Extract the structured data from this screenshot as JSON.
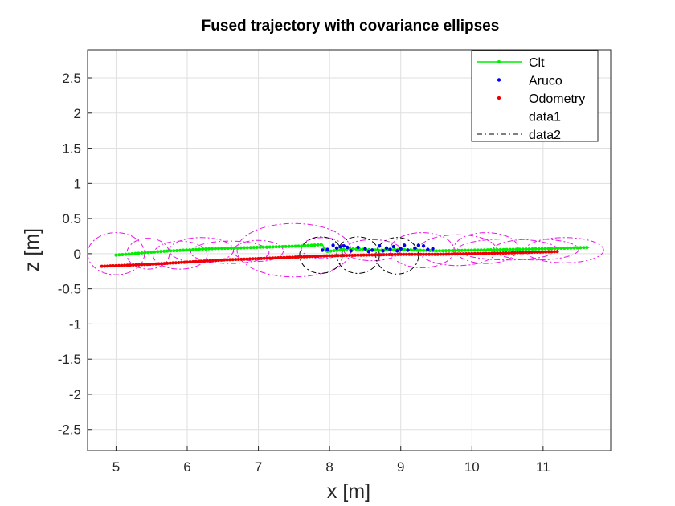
{
  "chart_data": {
    "type": "scatter",
    "title": "Fused trajectory with covariance ellipses",
    "xlabel": "x [m]",
    "ylabel": "z [m]",
    "xlim": [
      4.6,
      11.95
    ],
    "ylim": [
      -2.8,
      2.9
    ],
    "xticks": [
      5,
      6,
      7,
      8,
      9,
      10,
      11
    ],
    "yticks": [
      2.5,
      2,
      1.5,
      1,
      0.5,
      0,
      -0.5,
      -1,
      -1.5,
      -2,
      -2.5
    ],
    "xtick_labels": [
      "5",
      "6",
      "7",
      "8",
      "9",
      "10",
      "11"
    ],
    "ytick_labels": [
      "2.5",
      "2",
      "1.5",
      "1",
      "0.5",
      "0",
      "-0.5",
      "-1",
      "-1.5",
      "-2",
      "-2.5"
    ],
    "grid": true,
    "legend_position": "top-right",
    "series": [
      {
        "name": "Clt",
        "style": "line-dots",
        "color": "#00ee00",
        "x_range": [
          5.0,
          11.65
        ],
        "path": [
          [
            5.0,
            -0.02
          ],
          [
            5.6,
            0.03
          ],
          [
            6.3,
            0.07
          ],
          [
            7.0,
            0.09
          ],
          [
            7.6,
            0.11
          ],
          [
            7.9,
            0.13
          ],
          [
            7.95,
            0.03
          ],
          [
            8.3,
            0.07
          ],
          [
            8.7,
            0.05
          ],
          [
            9.0,
            0.06
          ],
          [
            9.5,
            0.04
          ],
          [
            10.0,
            0.05
          ],
          [
            10.5,
            0.06
          ],
          [
            11.0,
            0.07
          ],
          [
            11.65,
            0.09
          ]
        ]
      },
      {
        "name": "Aruco",
        "style": "dots",
        "color": "#0000ee",
        "points": [
          [
            7.9,
            0.05
          ],
          [
            7.97,
            0.06
          ],
          [
            8.05,
            0.12
          ],
          [
            8.1,
            0.08
          ],
          [
            8.15,
            0.1
          ],
          [
            8.2,
            0.11
          ],
          [
            8.25,
            0.09
          ],
          [
            8.3,
            0.04
          ],
          [
            8.4,
            0.09
          ],
          [
            8.5,
            0.07
          ],
          [
            8.55,
            0.03
          ],
          [
            8.6,
            0.05
          ],
          [
            8.7,
            0.11
          ],
          [
            8.75,
            0.04
          ],
          [
            8.8,
            0.08
          ],
          [
            8.85,
            0.06
          ],
          [
            8.9,
            0.1
          ],
          [
            8.95,
            0.04
          ],
          [
            9.0,
            0.07
          ],
          [
            9.05,
            0.12
          ],
          [
            9.1,
            0.05
          ],
          [
            9.2,
            0.08
          ],
          [
            9.25,
            0.12
          ],
          [
            9.32,
            0.11
          ],
          [
            9.38,
            0.06
          ],
          [
            9.45,
            0.07
          ]
        ]
      },
      {
        "name": "Odometry",
        "style": "dots",
        "color": "#ee0000",
        "x_range": [
          4.8,
          11.2
        ],
        "path": [
          [
            4.8,
            -0.18
          ],
          [
            5.5,
            -0.15
          ],
          [
            6.0,
            -0.12
          ],
          [
            6.5,
            -0.09
          ],
          [
            7.0,
            -0.07
          ],
          [
            7.5,
            -0.05
          ],
          [
            8.0,
            -0.03
          ],
          [
            8.5,
            -0.02
          ],
          [
            9.0,
            -0.01
          ],
          [
            9.5,
            -0.01
          ],
          [
            10.0,
            0.0
          ],
          [
            10.5,
            0.01
          ],
          [
            11.2,
            0.03
          ]
        ]
      },
      {
        "name": "data1",
        "style": "dashdot",
        "color": "#e815e8",
        "ellipses": [
          [
            5.0,
            0.0,
            0.4,
            0.3
          ],
          [
            5.45,
            0.0,
            0.3,
            0.22
          ],
          [
            5.9,
            -0.02,
            0.38,
            0.2
          ],
          [
            6.2,
            0.05,
            0.45,
            0.18
          ],
          [
            6.6,
            0.02,
            0.55,
            0.16
          ],
          [
            7.0,
            0.04,
            0.35,
            0.15
          ],
          [
            7.5,
            0.05,
            0.8,
            0.38
          ],
          [
            7.9,
            0.08,
            0.3,
            0.15
          ],
          [
            8.6,
            0.05,
            0.4,
            0.15
          ],
          [
            9.3,
            0.05,
            0.45,
            0.25
          ],
          [
            9.8,
            0.05,
            0.55,
            0.22
          ],
          [
            10.2,
            0.08,
            0.45,
            0.22
          ],
          [
            10.5,
            0.06,
            0.7,
            0.15
          ],
          [
            10.9,
            0.06,
            0.6,
            0.15
          ],
          [
            11.3,
            0.05,
            0.55,
            0.18
          ]
        ]
      },
      {
        "name": "data2",
        "style": "dashdot",
        "color": "#000000",
        "ellipses": [
          [
            7.88,
            -0.02,
            0.3,
            0.26
          ],
          [
            8.4,
            -0.02,
            0.3,
            0.26
          ],
          [
            8.95,
            -0.03,
            0.3,
            0.26
          ]
        ]
      }
    ]
  }
}
